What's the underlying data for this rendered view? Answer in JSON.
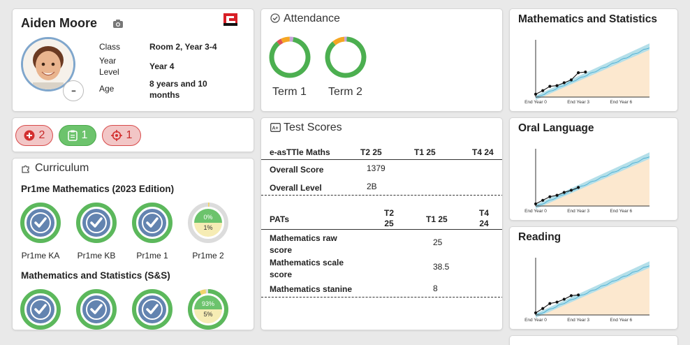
{
  "profile": {
    "name": "Aiden Moore",
    "fields": [
      {
        "label": "Class",
        "value": "Room 2, Year 3-4"
      },
      {
        "label": "Year Level",
        "value": "Year 4"
      },
      {
        "label": "Age",
        "value": "8 years and 10 months"
      }
    ],
    "more_label": "•••"
  },
  "badges": [
    {
      "icon": "plus-circle-icon",
      "count": "2"
    },
    {
      "icon": "clipboard-icon",
      "count": "1"
    },
    {
      "icon": "target-icon",
      "count": "1"
    }
  ],
  "curriculum": {
    "title": "Curriculum",
    "sections": [
      {
        "title": "Pr1me Mathematics (2023 Edition)",
        "items": [
          {
            "label": "Pr1me KA",
            "complete": true
          },
          {
            "label": "Pr1me KB",
            "complete": true
          },
          {
            "label": "Pr1me 1",
            "complete": true
          },
          {
            "label": "Pr1me 2",
            "complete": false,
            "green_pct": "0%",
            "yellow_pct": "1%",
            "green_value": 0,
            "yellow_value": 1
          }
        ]
      },
      {
        "title": "Mathematics and Statistics (S&S)",
        "items": [
          {
            "label": "",
            "complete": true
          },
          {
            "label": "",
            "complete": true
          },
          {
            "label": "",
            "complete": true
          },
          {
            "label": "",
            "complete": false,
            "green_pct": "93%",
            "yellow_pct": "5%",
            "green_value": 93,
            "yellow_value": 5
          }
        ]
      }
    ]
  },
  "attendance": {
    "title": "Attendance",
    "terms": [
      {
        "label": "Term 1",
        "present": 86,
        "late": 7,
        "absent": 4,
        "justified": 3
      },
      {
        "label": "Term 2",
        "present": 88,
        "late": 10,
        "absent": 0,
        "justified": 2
      }
    ],
    "colors": {
      "present": "#4caf50",
      "late": "#f5a623",
      "absent": "#e05252",
      "justified": "#c9a3d9"
    }
  },
  "test_scores": {
    "title": "Test Scores",
    "easttle": {
      "heading": "e-asTTle Maths",
      "columns": [
        "T2 25",
        "T1 25",
        "T4 24"
      ],
      "rows": [
        {
          "label": "Overall Score",
          "values": [
            "1379",
            "",
            ""
          ]
        },
        {
          "label": "Overall Level",
          "values": [
            "2B",
            "",
            ""
          ]
        }
      ]
    },
    "pats": {
      "heading": "PATs",
      "columns": [
        "T2 25",
        "T1 25",
        "T4 24"
      ],
      "rows": [
        {
          "label": "Mathematics raw score",
          "values": [
            "",
            "25",
            ""
          ]
        },
        {
          "label": "Mathematics scale score",
          "values": [
            "",
            "38.5",
            ""
          ]
        },
        {
          "label": "Mathematics stanine",
          "values": [
            "",
            "8",
            ""
          ]
        }
      ]
    }
  },
  "progress_charts": {
    "titles": [
      "Mathematics and Statistics",
      "Oral Language",
      "Reading"
    ],
    "x_tick_labels": [
      "End Year 0",
      "End Year 3",
      "End Year 6"
    ]
  },
  "chart_data": [
    {
      "type": "line",
      "title": "Mathematics and Statistics",
      "x": [
        0,
        0.5,
        1,
        1.5,
        2,
        2.5,
        3,
        3.5
      ],
      "y": [
        0.4,
        0.9,
        1.5,
        1.6,
        2.0,
        2.4,
        3.4,
        3.5
      ],
      "xticks": [
        "End Year 0",
        "End Year 3",
        "End Year 6"
      ],
      "band": "expected range",
      "xlim": [
        0,
        8
      ],
      "ylim": [
        0,
        8
      ]
    },
    {
      "type": "line",
      "title": "Oral Language",
      "x": [
        0,
        0.5,
        1,
        1.5,
        2,
        2.5,
        3
      ],
      "y": [
        0.3,
        0.8,
        1.3,
        1.5,
        1.9,
        2.2,
        2.6
      ],
      "xticks": [
        "End Year 0",
        "End Year 3",
        "End Year 6"
      ],
      "xlim": [
        0,
        8
      ],
      "ylim": [
        0,
        8
      ]
    },
    {
      "type": "line",
      "title": "Reading",
      "x": [
        0,
        0.5,
        1,
        1.5,
        2,
        2.5,
        3
      ],
      "y": [
        0.3,
        0.9,
        1.6,
        1.8,
        2.2,
        2.7,
        2.8
      ],
      "xticks": [
        "End Year 0",
        "End Year 3",
        "End Year 6"
      ],
      "xlim": [
        0,
        8
      ],
      "ylim": [
        0,
        8
      ]
    }
  ]
}
